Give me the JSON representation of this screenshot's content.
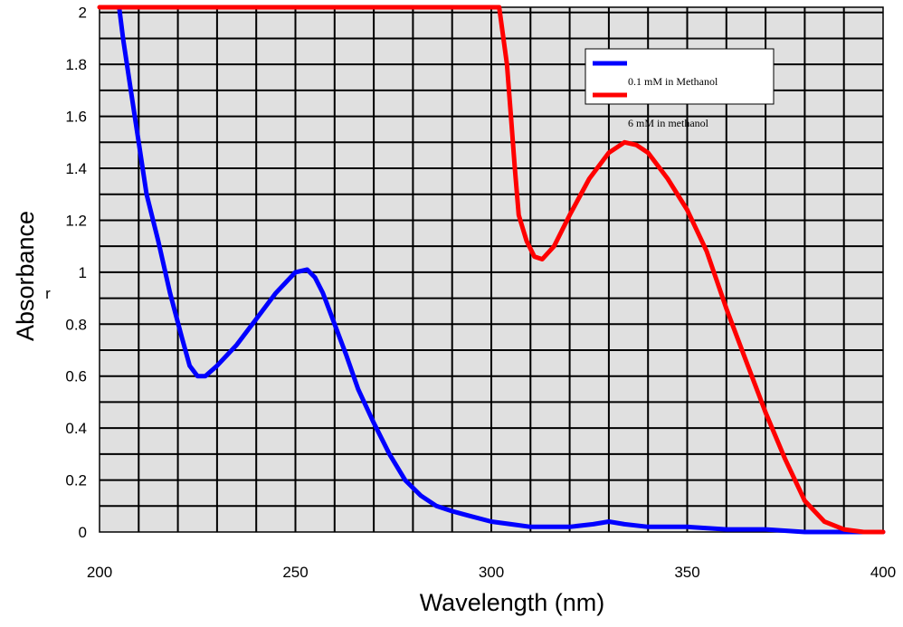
{
  "chart_data": {
    "type": "line",
    "title": "",
    "xlabel": "Wavelength (nm)",
    "ylabel": "Absorbance",
    "ylabel_subscript": "r",
    "xlim": [
      200,
      400
    ],
    "ylim": [
      0,
      2.02
    ],
    "x_ticks": [
      200,
      250,
      300,
      350,
      400
    ],
    "y_ticks": [
      0,
      0.2,
      0.4,
      0.6,
      0.8,
      1,
      1.2,
      1.4,
      1.6,
      1.8,
      2
    ],
    "grid": true,
    "legend_position": "top-right",
    "colors": {
      "plot_background": "#e0e0e0",
      "grid": "#000000"
    },
    "series": [
      {
        "name": "0.1 mM in Methanol",
        "color": "#0000ff",
        "points": [
          [
            205,
            2.02
          ],
          [
            206,
            1.9
          ],
          [
            208,
            1.7
          ],
          [
            210,
            1.5
          ],
          [
            212,
            1.3
          ],
          [
            215,
            1.12
          ],
          [
            218,
            0.92
          ],
          [
            221,
            0.75
          ],
          [
            223,
            0.64
          ],
          [
            225,
            0.6
          ],
          [
            227,
            0.6
          ],
          [
            230,
            0.64
          ],
          [
            235,
            0.72
          ],
          [
            240,
            0.82
          ],
          [
            245,
            0.92
          ],
          [
            250,
            1.0
          ],
          [
            253,
            1.01
          ],
          [
            255,
            0.98
          ],
          [
            257,
            0.92
          ],
          [
            260,
            0.8
          ],
          [
            263,
            0.68
          ],
          [
            266,
            0.55
          ],
          [
            270,
            0.42
          ],
          [
            274,
            0.3
          ],
          [
            278,
            0.2
          ],
          [
            282,
            0.14
          ],
          [
            286,
            0.1
          ],
          [
            290,
            0.08
          ],
          [
            295,
            0.06
          ],
          [
            300,
            0.04
          ],
          [
            305,
            0.03
          ],
          [
            310,
            0.02
          ],
          [
            320,
            0.02
          ],
          [
            326,
            0.03
          ],
          [
            330,
            0.04
          ],
          [
            334,
            0.03
          ],
          [
            340,
            0.02
          ],
          [
            350,
            0.02
          ],
          [
            360,
            0.01
          ],
          [
            370,
            0.01
          ],
          [
            380,
            0.0
          ],
          [
            400,
            0.0
          ]
        ]
      },
      {
        "name": "6 mM in methanol",
        "color": "#ff0000",
        "points": [
          [
            200,
            2.02
          ],
          [
            302,
            2.02
          ],
          [
            304,
            1.8
          ],
          [
            305,
            1.6
          ],
          [
            306,
            1.4
          ],
          [
            307,
            1.22
          ],
          [
            309,
            1.12
          ],
          [
            311,
            1.06
          ],
          [
            313,
            1.05
          ],
          [
            316,
            1.1
          ],
          [
            320,
            1.22
          ],
          [
            325,
            1.36
          ],
          [
            330,
            1.46
          ],
          [
            334,
            1.5
          ],
          [
            337,
            1.49
          ],
          [
            340,
            1.46
          ],
          [
            345,
            1.36
          ],
          [
            350,
            1.24
          ],
          [
            355,
            1.08
          ],
          [
            360,
            0.86
          ],
          [
            365,
            0.66
          ],
          [
            370,
            0.46
          ],
          [
            375,
            0.28
          ],
          [
            380,
            0.12
          ],
          [
            385,
            0.04
          ],
          [
            390,
            0.01
          ],
          [
            395,
            0.0
          ],
          [
            400,
            0.0
          ]
        ]
      }
    ]
  }
}
